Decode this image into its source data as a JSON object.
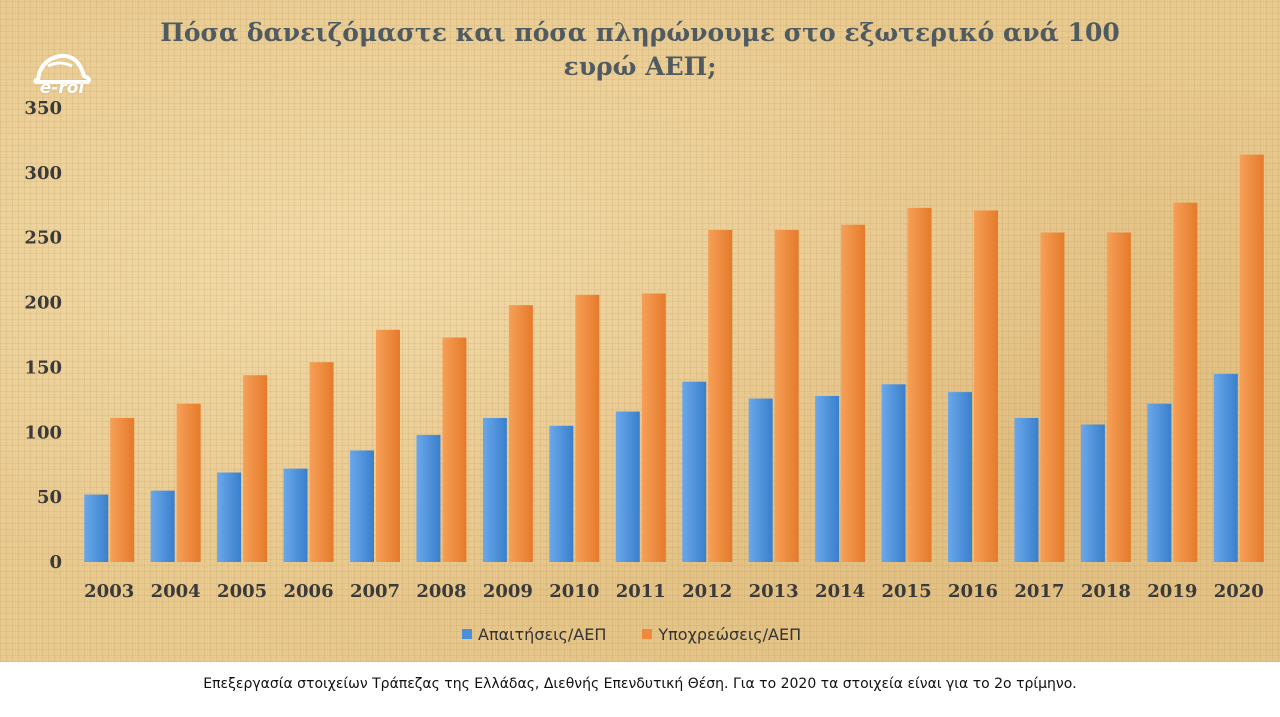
{
  "chart_data": {
    "type": "bar",
    "title": "Πόσα δανειζόμαστε και πόσα πληρώνουμε στο εξωτερικό ανά 100 ευρώ ΑΕΠ;",
    "categories": [
      "2003",
      "2004",
      "2005",
      "2006",
      "2007",
      "2008",
      "2009",
      "2010",
      "2011",
      "2012",
      "2013",
      "2014",
      "2015",
      "2016",
      "2017",
      "2018",
      "2019",
      "2020"
    ],
    "series": [
      {
        "name": "Απαιτήσεις/ΑΕΠ",
        "color": "#4a90d9",
        "values": [
          52,
          55,
          69,
          72,
          86,
          98,
          111,
          105,
          116,
          139,
          126,
          128,
          137,
          131,
          111,
          106,
          122,
          145
        ]
      },
      {
        "name": "Υποχρεώσεις/ΑΕΠ",
        "color": "#f08a3a",
        "values": [
          111,
          122,
          144,
          154,
          179,
          173,
          198,
          206,
          207,
          256,
          256,
          260,
          273,
          271,
          254,
          254,
          277,
          314
        ]
      }
    ],
    "yticks": [
      0,
      50,
      100,
      150,
      200,
      250,
      300,
      350
    ],
    "ylim": [
      0,
      350
    ],
    "grid": false,
    "legend_position": "bottom"
  },
  "logo": {
    "icon": "car-outline-icon",
    "text": "e-roi"
  },
  "footer": {
    "note": "Επεξεργασία στοιχείων Τράπεζας της Ελλάδας, Διεθνής Επενδυτική Θέση. Για το 2020 τα στοιχεία είναι για το 2ο τρίμηνο."
  }
}
